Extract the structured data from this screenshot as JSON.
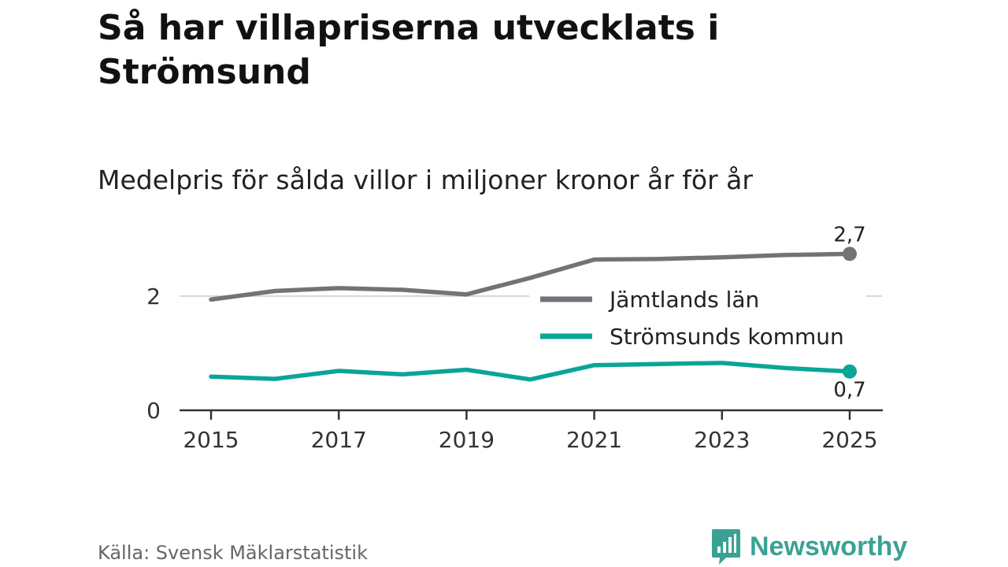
{
  "title": "Så har villapriserna utvecklats i Strömsund",
  "subtitle": "Medelpris för sålda villor i miljoner kronor år för år",
  "source": "Källa: Svensk Mäklarstatistik",
  "brand": {
    "name": "Newsworthy",
    "icon": "newsworthy-logo-icon",
    "color": "#3aa294"
  },
  "colors": {
    "jamtland": "#737278",
    "stromsund": "#0aa596",
    "axis": "#333333",
    "grid": "#d8d8d8"
  },
  "chart_data": {
    "type": "line",
    "title": "Så har villapriserna utvecklats i Strömsund",
    "subtitle": "Medelpris för sålda villor i miljoner kronor år för år",
    "xlabel": "",
    "ylabel": "",
    "x": [
      2015,
      2016,
      2017,
      2018,
      2019,
      2020,
      2021,
      2022,
      2023,
      2024,
      2025
    ],
    "xticks": [
      "2015",
      "2017",
      "2019",
      "2021",
      "2023",
      "2025"
    ],
    "yticks": [
      "0",
      "2"
    ],
    "ylim": [
      0,
      2.8
    ],
    "grid": true,
    "legend_position": "right",
    "series": [
      {
        "name": "Jämtlands län",
        "values": [
          1.94,
          2.09,
          2.14,
          2.11,
          2.03,
          2.32,
          2.64,
          2.65,
          2.68,
          2.72,
          2.74
        ],
        "end_label": "2,7"
      },
      {
        "name": "Strömsunds kommun",
        "values": [
          0.59,
          0.55,
          0.69,
          0.63,
          0.71,
          0.54,
          0.79,
          0.81,
          0.83,
          0.74,
          0.68
        ],
        "end_label": "0,7"
      }
    ]
  }
}
